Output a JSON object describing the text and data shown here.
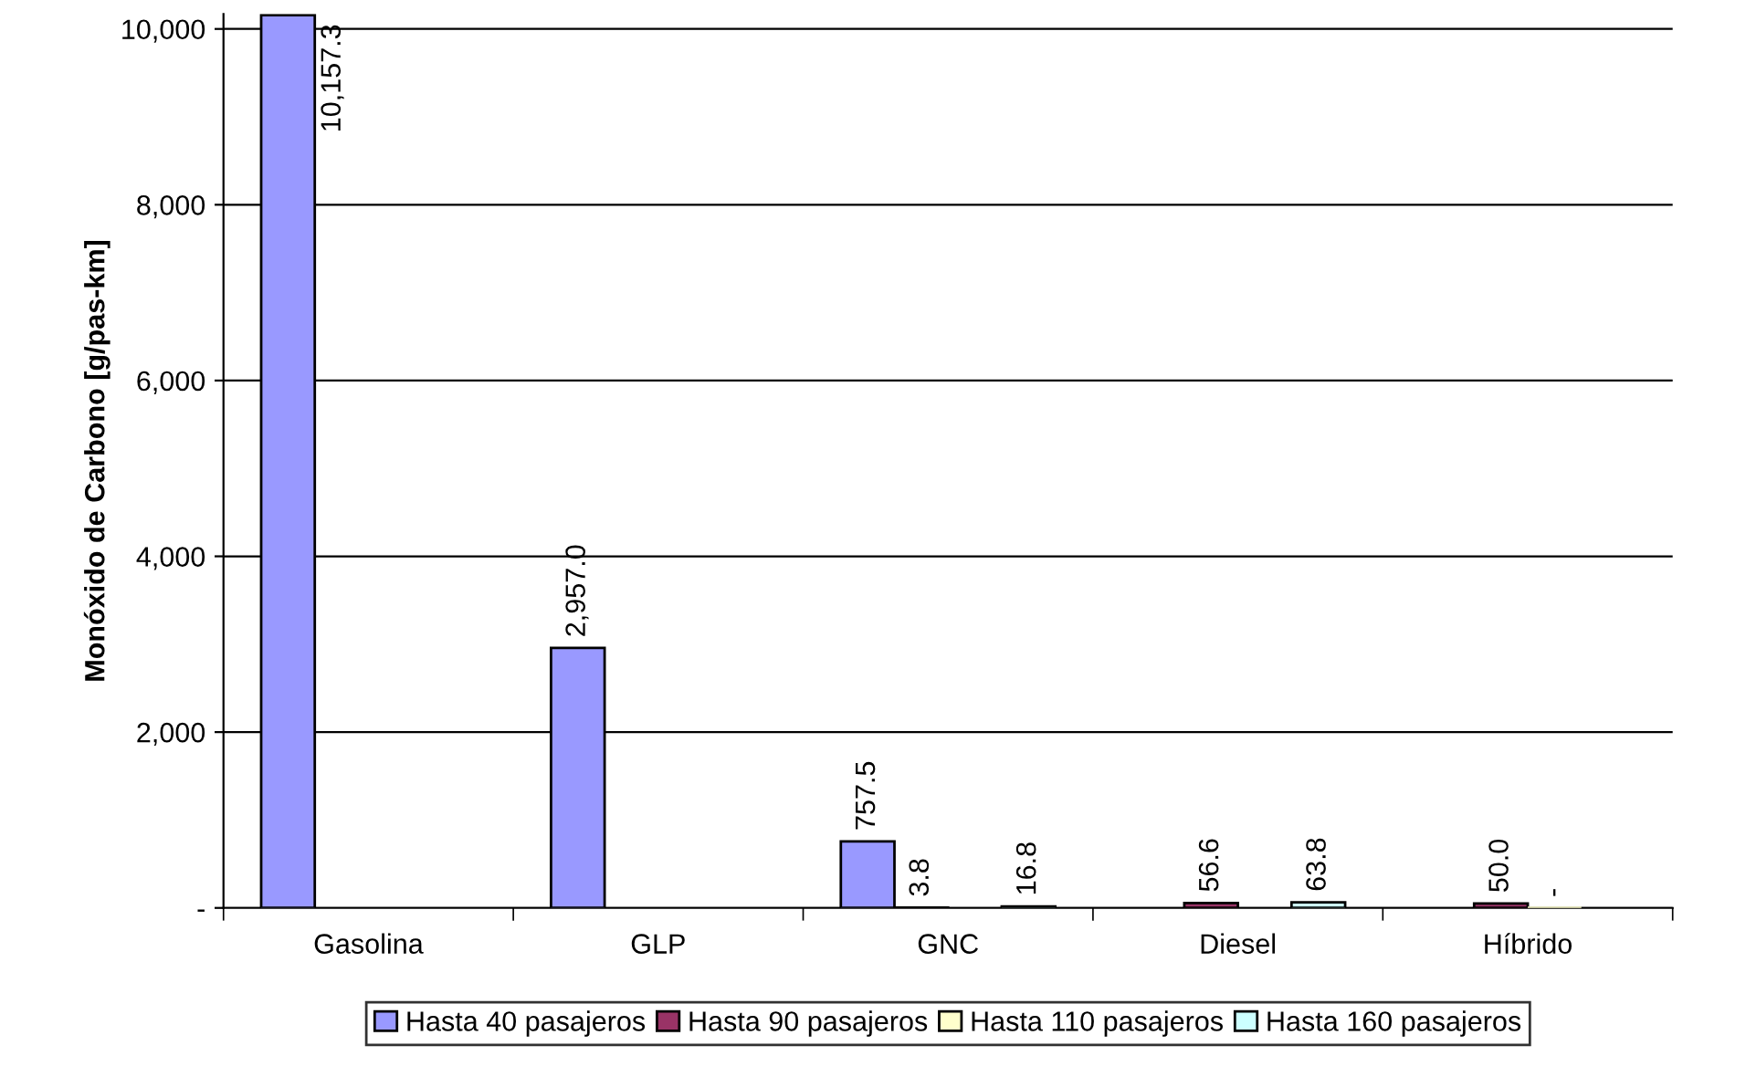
{
  "chart_data": {
    "type": "bar",
    "ylabel": "Monóxido de Carbono [g/pas-km]",
    "categories": [
      "Gasolina",
      "GLP",
      "GNC",
      "Diesel",
      "Híbrido"
    ],
    "series": [
      {
        "name": "Hasta 40 pasajeros",
        "color": "#9999ff",
        "values": [
          10157.3,
          2957.0,
          757.5,
          null,
          null
        ],
        "value_labels": [
          "10,157.3",
          "2,957.0",
          "757.5",
          null,
          null
        ]
      },
      {
        "name": "Hasta 90 pasajeros",
        "color": "#993366",
        "values": [
          null,
          null,
          3.8,
          56.6,
          50.0
        ],
        "value_labels": [
          null,
          null,
          "3.8",
          "56.6",
          "50.0"
        ]
      },
      {
        "name": "Hasta 110 pasajeros",
        "color": "#ffffcc",
        "values": [
          null,
          null,
          null,
          null,
          0
        ],
        "value_labels": [
          null,
          null,
          null,
          null,
          "-"
        ]
      },
      {
        "name": "Hasta 160 pasajeros",
        "color": "#ccffff",
        "values": [
          null,
          null,
          16.8,
          63.8,
          null
        ],
        "value_labels": [
          null,
          null,
          "16.8",
          "63.8",
          null
        ]
      }
    ],
    "ylim": [
      0,
      10170
    ],
    "yticks": [
      {
        "value": 0,
        "label": "-"
      },
      {
        "value": 2000,
        "label": "2,000"
      },
      {
        "value": 4000,
        "label": "4,000"
      },
      {
        "value": 6000,
        "label": "6,000"
      },
      {
        "value": 8000,
        "label": "8,000"
      },
      {
        "value": 10000,
        "label": "10,000"
      }
    ],
    "grid": "y",
    "legend": "bottom"
  }
}
